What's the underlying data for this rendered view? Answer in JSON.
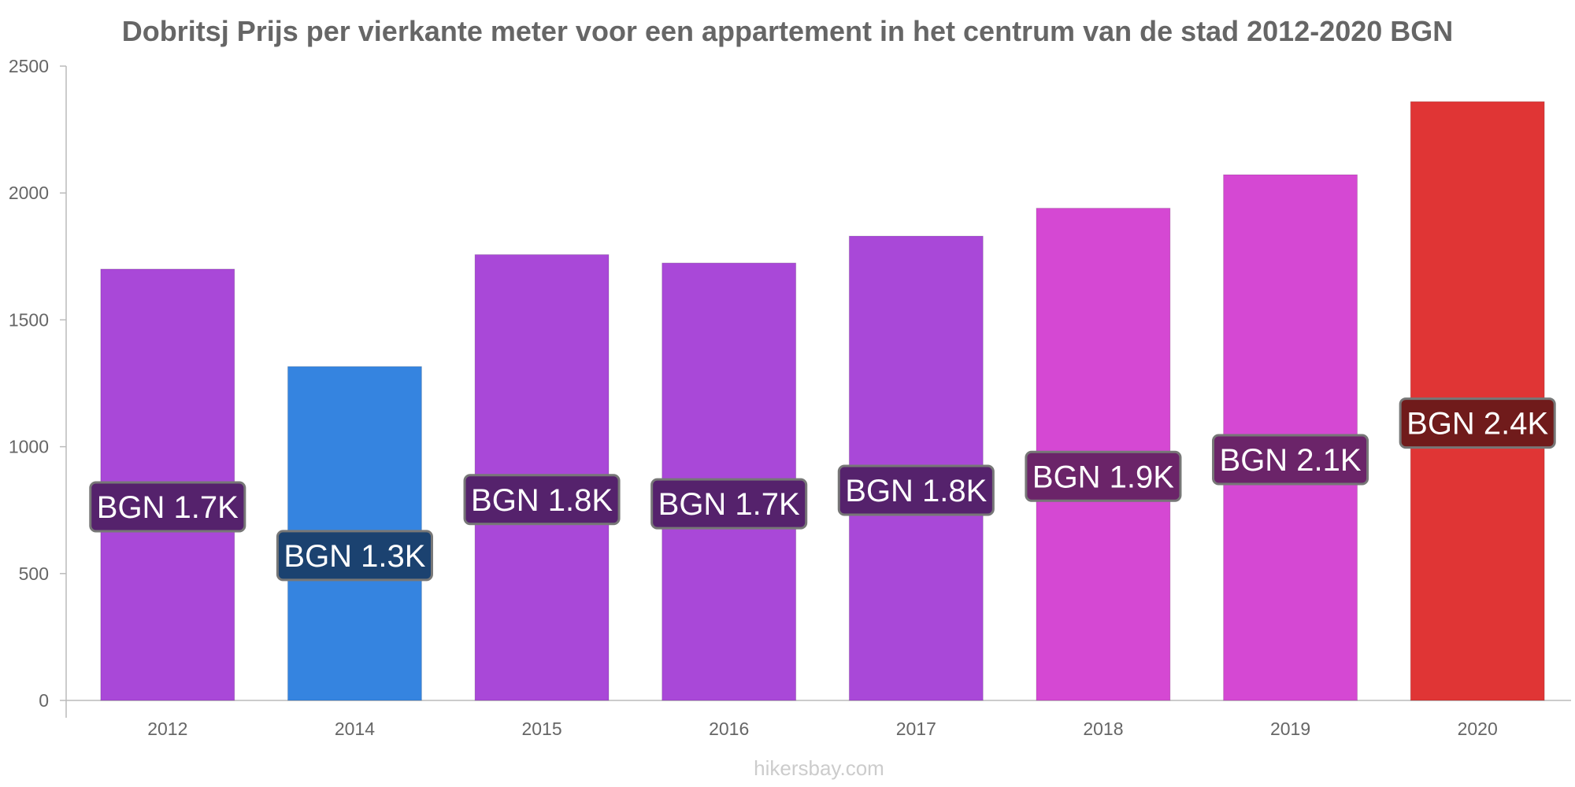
{
  "chart_data": {
    "type": "bar",
    "title": "Dobritsj Prijs per vierkante meter voor een appartement in het centrum van de stad 2012-2020 BGN",
    "xlabel": "",
    "ylabel": "",
    "categories": [
      "2012",
      "2014",
      "2015",
      "2016",
      "2017",
      "2018",
      "2019",
      "2020"
    ],
    "values": [
      1700,
      1316,
      1757,
      1724,
      1830,
      1940,
      2072,
      2360
    ],
    "data_labels": [
      "BGN 1.7K",
      "BGN 1.3K",
      "BGN 1.8K",
      "BGN 1.7K",
      "BGN 1.8K",
      "BGN 1.9K",
      "BGN 2.1K",
      "BGN 2.4K"
    ],
    "bar_colors": [
      "#a948d8",
      "#3584e0",
      "#a948d8",
      "#a948d8",
      "#a948d8",
      "#d548d3",
      "#d548d3",
      "#e03535"
    ],
    "label_bg_colors": [
      "#55226c",
      "#1b4270",
      "#55226c",
      "#55226c",
      "#55226c",
      "#6b2469",
      "#6b2469",
      "#701b1b"
    ],
    "ylim": [
      0,
      2500
    ],
    "yticks": [
      "0",
      "500",
      "1000",
      "1500",
      "2000",
      "2500"
    ],
    "grid": false,
    "legend": "none"
  },
  "watermark": "hikersbay.com"
}
